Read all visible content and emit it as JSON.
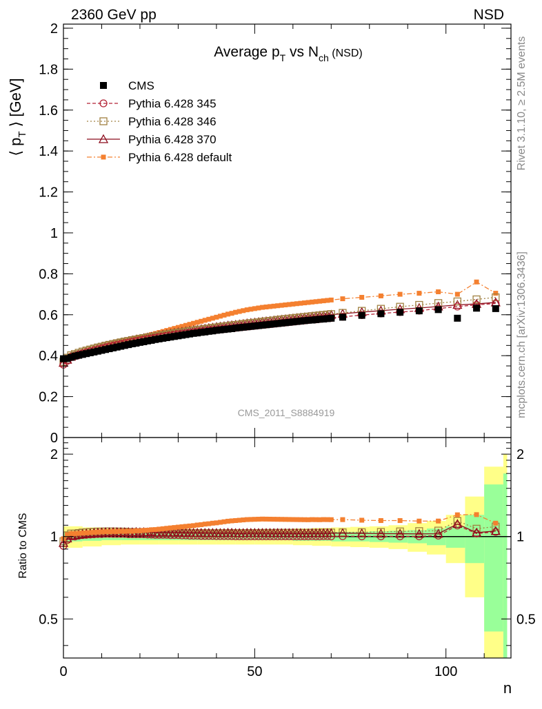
{
  "header": {
    "energy_label": "2360 GeV pp",
    "process_label": "NSD"
  },
  "side_labels": {
    "rivet": "Rivet 3.1.10, ≥ 2.5M events",
    "mcplots": "mcplots.cern.ch [arXiv:1306.3436]"
  },
  "watermark": "CMS_2011_S8884919",
  "chart_data": [
    {
      "type": "scatter",
      "panel": "main",
      "title": "Average p_T vs N_ch (NSD)",
      "title_parts": {
        "a": "Average p",
        "a_sub": "T",
        "b": " vs N",
        "b_sub": "ch",
        "c": " (NSD)"
      },
      "ylabel": "⟨ p_T ⟩ [GeV]",
      "ylabel_parts": {
        "a": "⟨ p",
        "sub": "T",
        "b": " ⟩ [GeV]"
      },
      "xlim": [
        0,
        117
      ],
      "ylim": [
        0,
        2.02
      ],
      "y_ticks": [
        0,
        0.2,
        0.4,
        0.6,
        0.8,
        1,
        1.2,
        1.4,
        1.6,
        1.8,
        2
      ],
      "y_tick_labels": [
        "0",
        "0.2",
        "0.4",
        "0.6",
        "0.8",
        "1",
        "1.2",
        "1.4",
        "1.6",
        "1.8",
        "2"
      ],
      "legend_position": "top-left",
      "series": [
        {
          "name": "CMS",
          "color": "#000000",
          "marker": "filled-square",
          "line": "none",
          "x": [
            0,
            1,
            2,
            3,
            4,
            5,
            6,
            7,
            8,
            9,
            10,
            11,
            12,
            13,
            14,
            15,
            16,
            17,
            18,
            19,
            20,
            21,
            22,
            23,
            24,
            25,
            26,
            27,
            28,
            29,
            30,
            31,
            32,
            33,
            34,
            35,
            36,
            37,
            38,
            39,
            40,
            41,
            42,
            43,
            44,
            45,
            46,
            47,
            48,
            49,
            50,
            51,
            52,
            53,
            54,
            55,
            56,
            57,
            58,
            59,
            60,
            61,
            62,
            63,
            64,
            65,
            66,
            67,
            68,
            69,
            70,
            73,
            78,
            83,
            88,
            93,
            98,
            103,
            108,
            113
          ],
          "y": [
            0.385,
            0.386,
            0.392,
            0.398,
            0.402,
            0.406,
            0.41,
            0.414,
            0.418,
            0.422,
            0.426,
            0.43,
            0.434,
            0.438,
            0.442,
            0.446,
            0.45,
            0.454,
            0.458,
            0.461,
            0.465,
            0.468,
            0.472,
            0.475,
            0.479,
            0.482,
            0.485,
            0.488,
            0.491,
            0.494,
            0.497,
            0.5,
            0.503,
            0.506,
            0.509,
            0.511,
            0.514,
            0.516,
            0.519,
            0.521,
            0.524,
            0.526,
            0.528,
            0.53,
            0.532,
            0.535,
            0.537,
            0.539,
            0.541,
            0.543,
            0.545,
            0.547,
            0.549,
            0.551,
            0.553,
            0.555,
            0.557,
            0.559,
            0.561,
            0.563,
            0.565,
            0.567,
            0.569,
            0.571,
            0.573,
            0.574,
            0.576,
            0.578,
            0.579,
            0.581,
            0.583,
            0.588,
            0.597,
            0.605,
            0.612,
            0.619,
            0.625,
            0.583,
            0.632,
            0.63
          ]
        },
        {
          "name": "Pythia 6.428 345",
          "color": "#b22234",
          "marker": "open-circle",
          "line": "dashed",
          "x": [
            0,
            1,
            2,
            3,
            4,
            5,
            6,
            7,
            8,
            9,
            10,
            11,
            12,
            13,
            14,
            15,
            16,
            17,
            18,
            19,
            20,
            21,
            22,
            23,
            24,
            25,
            26,
            27,
            28,
            29,
            30,
            31,
            32,
            33,
            34,
            35,
            36,
            37,
            38,
            39,
            40,
            41,
            42,
            43,
            44,
            45,
            46,
            47,
            48,
            49,
            50,
            51,
            52,
            53,
            54,
            55,
            56,
            57,
            58,
            59,
            60,
            61,
            62,
            63,
            64,
            65,
            66,
            67,
            68,
            69,
            70,
            73,
            78,
            83,
            88,
            93,
            98,
            103,
            108,
            113
          ],
          "y": [
            0.356,
            0.375,
            0.392,
            0.398,
            0.405,
            0.411,
            0.416,
            0.421,
            0.426,
            0.431,
            0.435,
            0.44,
            0.444,
            0.448,
            0.452,
            0.456,
            0.46,
            0.463,
            0.467,
            0.47,
            0.474,
            0.477,
            0.48,
            0.483,
            0.486,
            0.489,
            0.492,
            0.495,
            0.497,
            0.5,
            0.503,
            0.505,
            0.508,
            0.51,
            0.513,
            0.515,
            0.517,
            0.519,
            0.522,
            0.524,
            0.526,
            0.528,
            0.53,
            0.532,
            0.534,
            0.536,
            0.538,
            0.54,
            0.542,
            0.544,
            0.546,
            0.548,
            0.55,
            0.552,
            0.554,
            0.556,
            0.558,
            0.56,
            0.562,
            0.564,
            0.566,
            0.568,
            0.57,
            0.572,
            0.574,
            0.576,
            0.577,
            0.579,
            0.581,
            0.583,
            0.584,
            0.59,
            0.598,
            0.606,
            0.613,
            0.62,
            0.63,
            0.64,
            0.648,
            0.655
          ]
        },
        {
          "name": "Pythia 6.428 346",
          "color": "#a08040",
          "marker": "open-square",
          "line": "dotted",
          "x": [
            0,
            1,
            2,
            3,
            4,
            5,
            6,
            7,
            8,
            9,
            10,
            11,
            12,
            13,
            14,
            15,
            16,
            17,
            18,
            19,
            20,
            21,
            22,
            23,
            24,
            25,
            26,
            27,
            28,
            29,
            30,
            31,
            32,
            33,
            34,
            35,
            36,
            37,
            38,
            39,
            40,
            41,
            42,
            43,
            44,
            45,
            46,
            47,
            48,
            49,
            50,
            51,
            52,
            53,
            54,
            55,
            56,
            57,
            58,
            59,
            60,
            61,
            62,
            63,
            64,
            65,
            66,
            67,
            68,
            69,
            70,
            73,
            78,
            83,
            88,
            93,
            98,
            103,
            108,
            113
          ],
          "y": [
            0.37,
            0.39,
            0.402,
            0.408,
            0.414,
            0.42,
            0.425,
            0.43,
            0.435,
            0.44,
            0.444,
            0.449,
            0.453,
            0.457,
            0.461,
            0.465,
            0.469,
            0.472,
            0.476,
            0.479,
            0.483,
            0.486,
            0.489,
            0.492,
            0.495,
            0.498,
            0.501,
            0.504,
            0.507,
            0.51,
            0.513,
            0.515,
            0.518,
            0.521,
            0.523,
            0.526,
            0.528,
            0.531,
            0.533,
            0.536,
            0.538,
            0.541,
            0.543,
            0.545,
            0.548,
            0.55,
            0.552,
            0.555,
            0.557,
            0.559,
            0.561,
            0.563,
            0.566,
            0.568,
            0.57,
            0.572,
            0.575,
            0.577,
            0.579,
            0.581,
            0.583,
            0.585,
            0.587,
            0.589,
            0.591,
            0.593,
            0.595,
            0.597,
            0.599,
            0.601,
            0.603,
            0.609,
            0.619,
            0.629,
            0.639,
            0.648,
            0.657,
            0.665,
            0.675,
            0.685
          ]
        },
        {
          "name": "Pythia 6.428 370",
          "color": "#8b0a1a",
          "marker": "open-triangle",
          "line": "solid",
          "x": [
            0,
            1,
            2,
            3,
            4,
            5,
            6,
            7,
            8,
            9,
            10,
            11,
            12,
            13,
            14,
            15,
            16,
            17,
            18,
            19,
            20,
            21,
            22,
            23,
            24,
            25,
            26,
            27,
            28,
            29,
            30,
            31,
            32,
            33,
            34,
            35,
            36,
            37,
            38,
            39,
            40,
            41,
            42,
            43,
            44,
            45,
            46,
            47,
            48,
            49,
            50,
            51,
            52,
            53,
            54,
            55,
            56,
            57,
            58,
            59,
            60,
            61,
            62,
            63,
            64,
            65,
            66,
            67,
            68,
            69,
            70,
            73,
            78,
            83,
            88,
            93,
            98,
            103,
            108,
            113
          ],
          "y": [
            0.365,
            0.38,
            0.395,
            0.402,
            0.408,
            0.414,
            0.42,
            0.425,
            0.431,
            0.436,
            0.441,
            0.446,
            0.45,
            0.455,
            0.459,
            0.463,
            0.467,
            0.471,
            0.475,
            0.479,
            0.482,
            0.486,
            0.489,
            0.493,
            0.496,
            0.499,
            0.502,
            0.505,
            0.508,
            0.511,
            0.514,
            0.517,
            0.519,
            0.522,
            0.525,
            0.527,
            0.53,
            0.532,
            0.535,
            0.537,
            0.54,
            0.542,
            0.544,
            0.547,
            0.549,
            0.551,
            0.553,
            0.555,
            0.558,
            0.56,
            0.562,
            0.564,
            0.566,
            0.568,
            0.57,
            0.572,
            0.574,
            0.576,
            0.578,
            0.58,
            0.582,
            0.584,
            0.586,
            0.587,
            0.589,
            0.591,
            0.593,
            0.595,
            0.596,
            0.598,
            0.6,
            0.605,
            0.613,
            0.62,
            0.627,
            0.633,
            0.64,
            0.648,
            0.653,
            0.66
          ]
        },
        {
          "name": "Pythia 6.428 default",
          "color": "#f48030",
          "marker": "filled-square-small",
          "line": "dashdot",
          "x": [
            0,
            1,
            2,
            3,
            4,
            5,
            6,
            7,
            8,
            9,
            10,
            11,
            12,
            13,
            14,
            15,
            16,
            17,
            18,
            19,
            20,
            21,
            22,
            23,
            24,
            25,
            26,
            27,
            28,
            29,
            30,
            31,
            32,
            33,
            34,
            35,
            36,
            37,
            38,
            39,
            40,
            41,
            42,
            43,
            44,
            45,
            46,
            47,
            48,
            49,
            50,
            51,
            52,
            53,
            54,
            55,
            56,
            57,
            58,
            59,
            60,
            61,
            62,
            63,
            64,
            65,
            66,
            67,
            68,
            69,
            70,
            73,
            78,
            83,
            88,
            93,
            98,
            103,
            108,
            113
          ],
          "y": [
            0.378,
            0.392,
            0.402,
            0.408,
            0.413,
            0.418,
            0.423,
            0.428,
            0.433,
            0.438,
            0.443,
            0.448,
            0.452,
            0.457,
            0.461,
            0.466,
            0.47,
            0.475,
            0.479,
            0.484,
            0.488,
            0.493,
            0.498,
            0.503,
            0.508,
            0.513,
            0.518,
            0.523,
            0.528,
            0.533,
            0.538,
            0.543,
            0.548,
            0.553,
            0.558,
            0.563,
            0.568,
            0.573,
            0.578,
            0.583,
            0.588,
            0.593,
            0.598,
            0.603,
            0.607,
            0.612,
            0.616,
            0.62,
            0.624,
            0.627,
            0.63,
            0.633,
            0.636,
            0.638,
            0.64,
            0.642,
            0.644,
            0.646,
            0.648,
            0.65,
            0.652,
            0.654,
            0.656,
            0.658,
            0.66,
            0.662,
            0.664,
            0.666,
            0.668,
            0.67,
            0.672,
            0.678,
            0.685,
            0.692,
            0.7,
            0.705,
            0.712,
            0.7,
            0.76,
            0.705
          ]
        }
      ]
    },
    {
      "type": "scatter",
      "panel": "ratio",
      "ylabel": "Ratio to CMS",
      "xlabel": "n",
      "xlim": [
        0,
        117
      ],
      "ylim": [
        0.36,
        2.3
      ],
      "log_y": true,
      "x_ticks": [
        0,
        50,
        100
      ],
      "x_tick_labels": [
        "0",
        "50",
        "100"
      ],
      "y_ticks": [
        0.5,
        1,
        2
      ],
      "y_tick_labels": [
        "0.5",
        "1",
        "2"
      ],
      "reference_line": 1,
      "bands": {
        "x_edges": [
          0,
          5,
          10,
          15,
          20,
          25,
          30,
          35,
          40,
          45,
          50,
          55,
          60,
          65,
          70,
          75,
          80,
          85,
          90,
          95,
          100,
          105,
          110,
          115
        ],
        "green": [
          0.04,
          0.035,
          0.03,
          0.03,
          0.03,
          0.03,
          0.03,
          0.03,
          0.03,
          0.03,
          0.03,
          0.03,
          0.035,
          0.035,
          0.04,
          0.04,
          0.045,
          0.05,
          0.055,
          0.07,
          0.09,
          0.2,
          0.55,
          0.7
        ],
        "yellow": [
          0.09,
          0.08,
          0.07,
          0.065,
          0.065,
          0.065,
          0.065,
          0.065,
          0.065,
          0.065,
          0.065,
          0.065,
          0.07,
          0.075,
          0.08,
          0.085,
          0.09,
          0.1,
          0.12,
          0.14,
          0.2,
          0.4,
          0.8,
          1.0
        ]
      },
      "series": [
        {
          "name": "Pythia 6.428 345",
          "source": 1
        },
        {
          "name": "Pythia 6.428 346",
          "source": 2
        },
        {
          "name": "Pythia 6.428 370",
          "source": 3
        },
        {
          "name": "Pythia 6.428 default",
          "source": 4
        }
      ]
    }
  ]
}
